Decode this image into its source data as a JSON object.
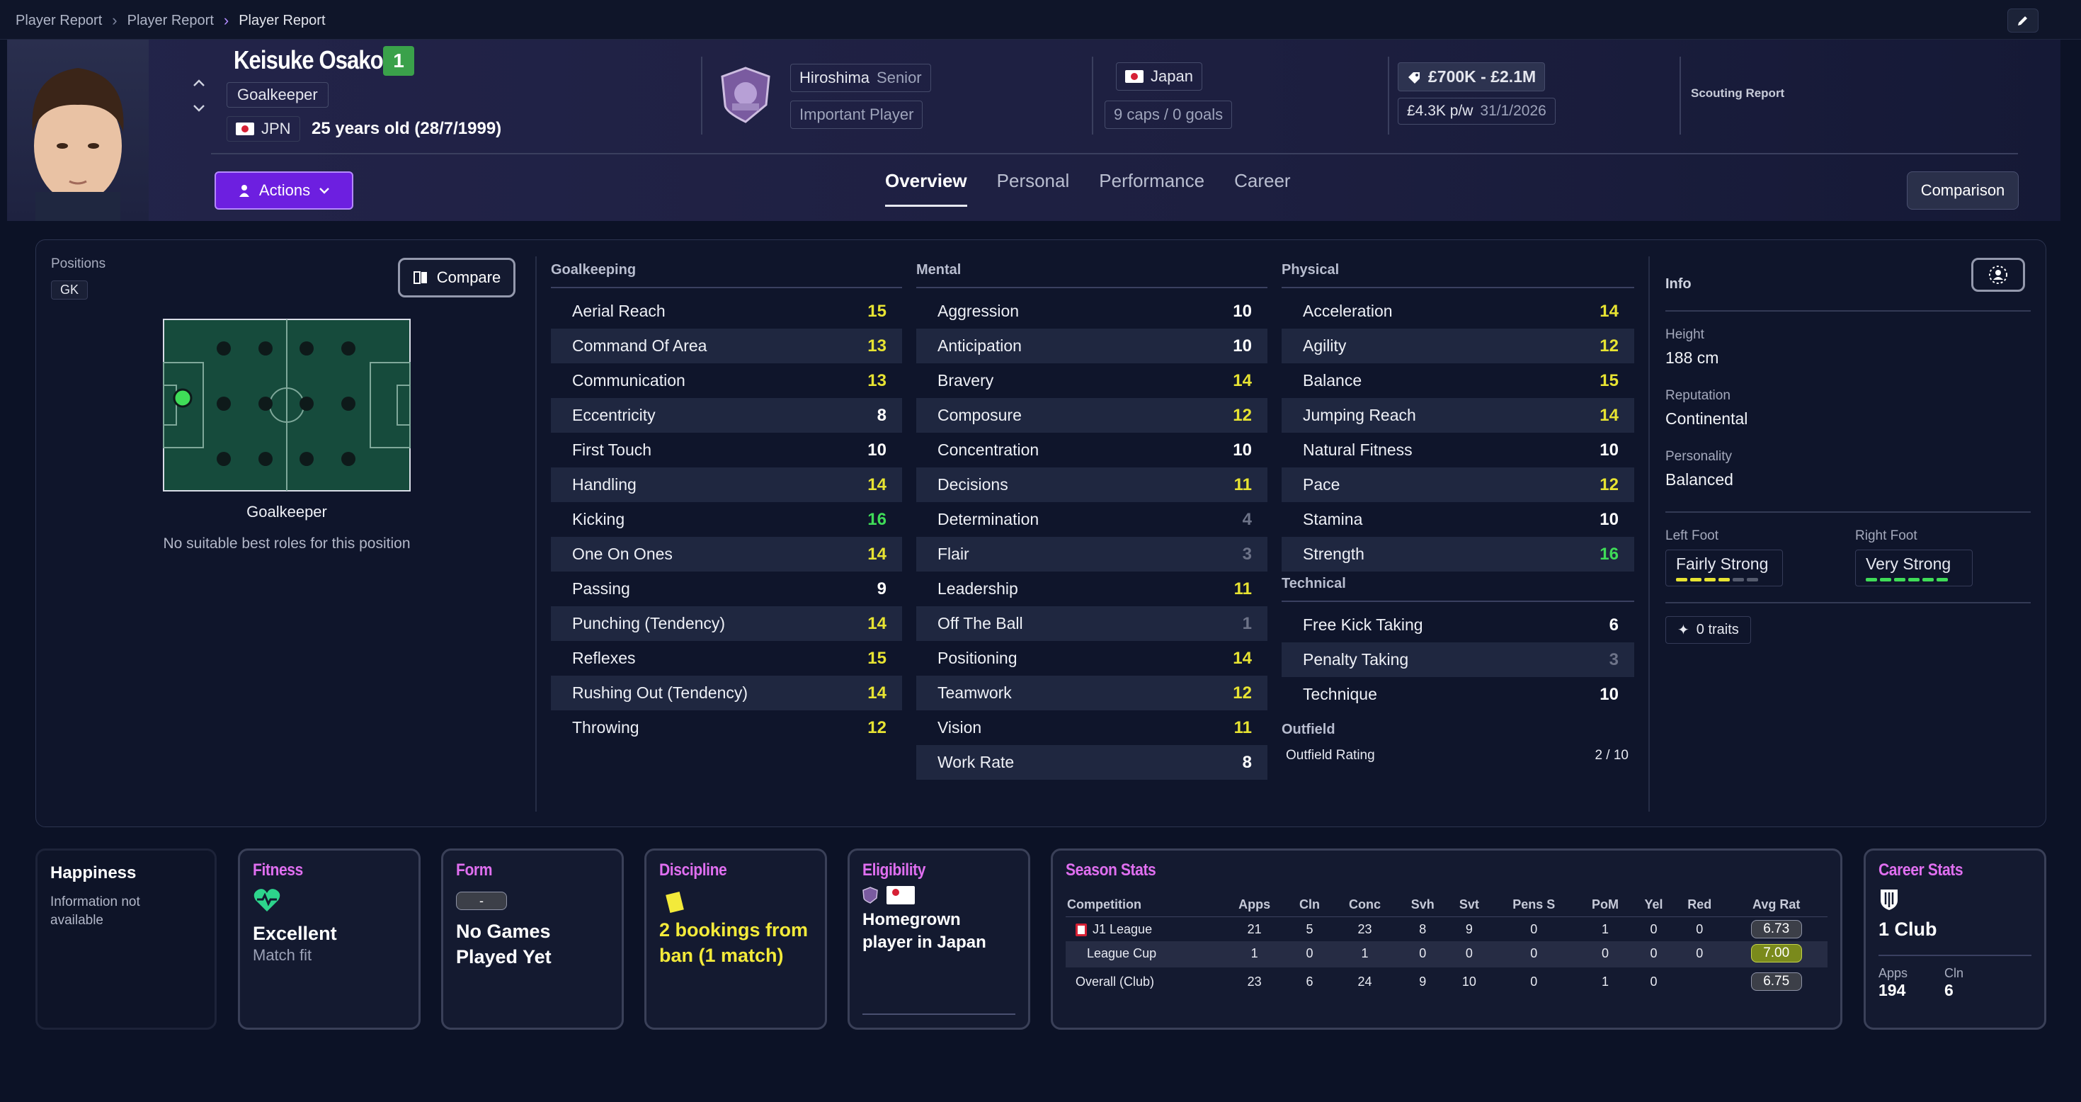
{
  "breadcrumb": [
    "Player Report",
    "Player Report",
    "Player Report"
  ],
  "player": {
    "name": "Keisuke Osako",
    "number": "1",
    "position": "Goalkeeper",
    "nation_code": "JPN",
    "age": "25 years old (28/7/1999)",
    "club": "Hiroshima",
    "squad_status": "Senior",
    "role_status": "Important Player",
    "nation": "Japan",
    "caps": "9 caps / 0 goals",
    "value": "£700K - £2.1M",
    "wage": "£4.3K p/w",
    "contract_end": "31/1/2026",
    "scouting_report": "Scouting Report"
  },
  "actions_label": "Actions",
  "tabs": [
    "Overview",
    "Personal",
    "Performance",
    "Career"
  ],
  "comparison_label": "Comparison",
  "positions": {
    "label": "Positions",
    "code": "GK",
    "compare_label": "Compare",
    "role_name": "Goalkeeper",
    "role_note": "No suitable best roles for this position"
  },
  "attributes": {
    "goalkeeping": {
      "title": "Goalkeeping",
      "items": [
        {
          "name": "Aerial Reach",
          "value": "15",
          "tier": "y"
        },
        {
          "name": "Command Of Area",
          "value": "13",
          "tier": "y"
        },
        {
          "name": "Communication",
          "value": "13",
          "tier": "y"
        },
        {
          "name": "Eccentricity",
          "value": "8",
          "tier": "w"
        },
        {
          "name": "First Touch",
          "value": "10",
          "tier": "w"
        },
        {
          "name": "Handling",
          "value": "14",
          "tier": "y"
        },
        {
          "name": "Kicking",
          "value": "16",
          "tier": "g"
        },
        {
          "name": "One On Ones",
          "value": "14",
          "tier": "y"
        },
        {
          "name": "Passing",
          "value": "9",
          "tier": "w"
        },
        {
          "name": "Punching (Tendency)",
          "value": "14",
          "tier": "y"
        },
        {
          "name": "Reflexes",
          "value": "15",
          "tier": "y"
        },
        {
          "name": "Rushing Out (Tendency)",
          "value": "14",
          "tier": "y"
        },
        {
          "name": "Throwing",
          "value": "12",
          "tier": "y"
        }
      ]
    },
    "mental": {
      "title": "Mental",
      "items": [
        {
          "name": "Aggression",
          "value": "10",
          "tier": "w"
        },
        {
          "name": "Anticipation",
          "value": "10",
          "tier": "w"
        },
        {
          "name": "Bravery",
          "value": "14",
          "tier": "y"
        },
        {
          "name": "Composure",
          "value": "12",
          "tier": "y"
        },
        {
          "name": "Concentration",
          "value": "10",
          "tier": "w"
        },
        {
          "name": "Decisions",
          "value": "11",
          "tier": "y"
        },
        {
          "name": "Determination",
          "value": "4",
          "tier": "gr"
        },
        {
          "name": "Flair",
          "value": "3",
          "tier": "gr"
        },
        {
          "name": "Leadership",
          "value": "11",
          "tier": "y"
        },
        {
          "name": "Off The Ball",
          "value": "1",
          "tier": "gr"
        },
        {
          "name": "Positioning",
          "value": "14",
          "tier": "y"
        },
        {
          "name": "Teamwork",
          "value": "12",
          "tier": "y"
        },
        {
          "name": "Vision",
          "value": "11",
          "tier": "y"
        },
        {
          "name": "Work Rate",
          "value": "8",
          "tier": "w"
        }
      ]
    },
    "physical": {
      "title": "Physical",
      "items": [
        {
          "name": "Acceleration",
          "value": "14",
          "tier": "y"
        },
        {
          "name": "Agility",
          "value": "12",
          "tier": "y"
        },
        {
          "name": "Balance",
          "value": "15",
          "tier": "y"
        },
        {
          "name": "Jumping Reach",
          "value": "14",
          "tier": "y"
        },
        {
          "name": "Natural Fitness",
          "value": "10",
          "tier": "w"
        },
        {
          "name": "Pace",
          "value": "12",
          "tier": "y"
        },
        {
          "name": "Stamina",
          "value": "10",
          "tier": "w"
        },
        {
          "name": "Strength",
          "value": "16",
          "tier": "g"
        }
      ]
    },
    "technical": {
      "title": "Technical",
      "items": [
        {
          "name": "Free Kick Taking",
          "value": "6",
          "tier": "w"
        },
        {
          "name": "Penalty Taking",
          "value": "3",
          "tier": "gr"
        },
        {
          "name": "Technique",
          "value": "10",
          "tier": "w"
        }
      ]
    },
    "outfield": {
      "title": "Outfield",
      "label": "Outfield Rating",
      "value": "2 / 10"
    }
  },
  "info": {
    "title": "Info",
    "height_label": "Height",
    "height": "188 cm",
    "reputation_label": "Reputation",
    "reputation": "Continental",
    "personality_label": "Personality",
    "personality": "Balanced",
    "left_foot_label": "Left Foot",
    "left_foot": "Fairly Strong",
    "left_foot_level": 4,
    "right_foot_label": "Right Foot",
    "right_foot": "Very Strong",
    "right_foot_level": 6,
    "traits": "0 traits"
  },
  "cards": {
    "happiness": {
      "title": "Happiness",
      "text": "Information not available"
    },
    "fitness": {
      "title": "Fitness",
      "value": "Excellent",
      "sub": "Match fit"
    },
    "form": {
      "title": "Form",
      "badge": "-",
      "value": "No Games Played Yet"
    },
    "discipline": {
      "title": "Discipline",
      "value": "2 bookings from ban (1 match)"
    },
    "eligibility": {
      "title": "Eligibility",
      "value": "Homegrown player in Japan"
    },
    "career": {
      "title": "Career Stats",
      "value": "1 Club",
      "apps_label": "Apps",
      "apps": "194",
      "cln_label": "Cln",
      "cln": "6"
    }
  },
  "season_stats": {
    "title": "Season Stats",
    "columns": [
      "Competition",
      "Apps",
      "Cln",
      "Conc",
      "Svh",
      "Svt",
      "Pens S",
      "PoM",
      "Yel",
      "Red",
      "Avg Rat"
    ],
    "rows": [
      {
        "comp": "J1 League",
        "apps": "21",
        "cln": "5",
        "conc": "23",
        "svh": "8",
        "svt": "9",
        "pens": "0",
        "pom": "1",
        "yel": "0",
        "red": "0",
        "rat": "6.73",
        "good": false
      },
      {
        "comp": "League Cup",
        "apps": "1",
        "cln": "0",
        "conc": "1",
        "svh": "0",
        "svt": "0",
        "pens": "0",
        "pom": "0",
        "yel": "0",
        "red": "0",
        "rat": "7.00",
        "good": true
      },
      {
        "comp": "Overall (Club)",
        "apps": "23",
        "cln": "6",
        "conc": "24",
        "svh": "9",
        "svt": "10",
        "pens": "0",
        "pom": "1",
        "yel": "0",
        "red": "",
        "rat": "6.75",
        "good": false
      }
    ]
  },
  "colors": {
    "accent": "#6d1fe0",
    "card_title": "#e06ff0",
    "good": "#3fdc58",
    "ok": "#e7e332"
  }
}
